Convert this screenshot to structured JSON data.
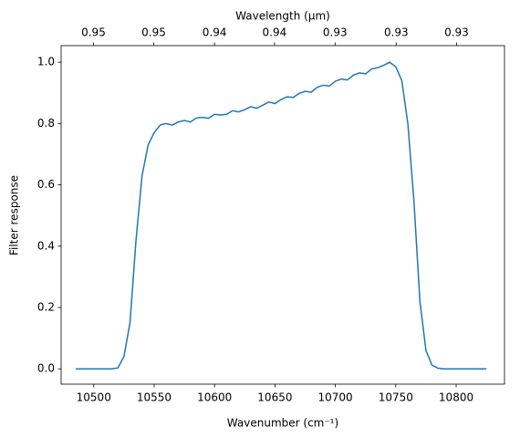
{
  "chart_data": {
    "type": "line",
    "xlabel": "Wavenumber (cm⁻¹)",
    "ylabel": "Filter response",
    "x2label": "Wavelength (μm)",
    "series": [
      {
        "color": "#1f77b4",
        "x": [
          10485,
          10490,
          10495,
          10500,
          10505,
          10510,
          10515,
          10520,
          10525,
          10530,
          10535,
          10540,
          10545,
          10550,
          10555,
          10560,
          10565,
          10570,
          10575,
          10580,
          10585,
          10590,
          10595,
          10600,
          10605,
          10610,
          10615,
          10620,
          10625,
          10630,
          10635,
          10640,
          10645,
          10650,
          10655,
          10660,
          10665,
          10670,
          10675,
          10680,
          10685,
          10690,
          10695,
          10700,
          10705,
          10710,
          10715,
          10720,
          10725,
          10730,
          10735,
          10740,
          10745,
          10750,
          10755,
          10760,
          10765,
          10770,
          10775,
          10780,
          10785,
          10790,
          10795,
          10800,
          10805,
          10810,
          10815,
          10820,
          10825
        ],
        "values": [
          0,
          0,
          0,
          0,
          0,
          0,
          0,
          0.003,
          0.04,
          0.15,
          0.42,
          0.63,
          0.73,
          0.77,
          0.795,
          0.8,
          0.795,
          0.805,
          0.81,
          0.805,
          0.818,
          0.82,
          0.817,
          0.83,
          0.828,
          0.83,
          0.842,
          0.838,
          0.845,
          0.855,
          0.85,
          0.86,
          0.87,
          0.865,
          0.878,
          0.887,
          0.885,
          0.898,
          0.905,
          0.902,
          0.918,
          0.925,
          0.922,
          0.938,
          0.945,
          0.942,
          0.958,
          0.965,
          0.962,
          0.978,
          0.982,
          0.99,
          1.0,
          0.985,
          0.94,
          0.8,
          0.55,
          0.22,
          0.06,
          0.012,
          0.002,
          0,
          0,
          0,
          0,
          0,
          0,
          0,
          0
        ]
      }
    ],
    "xlim": [
      10473,
      10840
    ],
    "xticks": [
      10500,
      10550,
      10600,
      10650,
      10700,
      10750,
      10800
    ],
    "ylim": [
      -0.05,
      1.054
    ],
    "yticks": [
      {
        "value": 0,
        "label": "0.0"
      },
      0.2,
      0.4,
      0.6,
      0.8,
      {
        "value": 1,
        "label": "1.0"
      }
    ],
    "x2ticks": [
      {
        "value": 0.9524,
        "label": "0.95"
      },
      {
        "value": 0.9479,
        "label": "0.95"
      },
      {
        "value": 0.9434,
        "label": "0.94"
      },
      {
        "value": 0.939,
        "label": "0.94"
      },
      {
        "value": 0.9346,
        "label": "0.93"
      },
      {
        "value": 0.9302,
        "label": "0.93"
      },
      {
        "value": 0.9259,
        "label": "0.93"
      }
    ]
  }
}
